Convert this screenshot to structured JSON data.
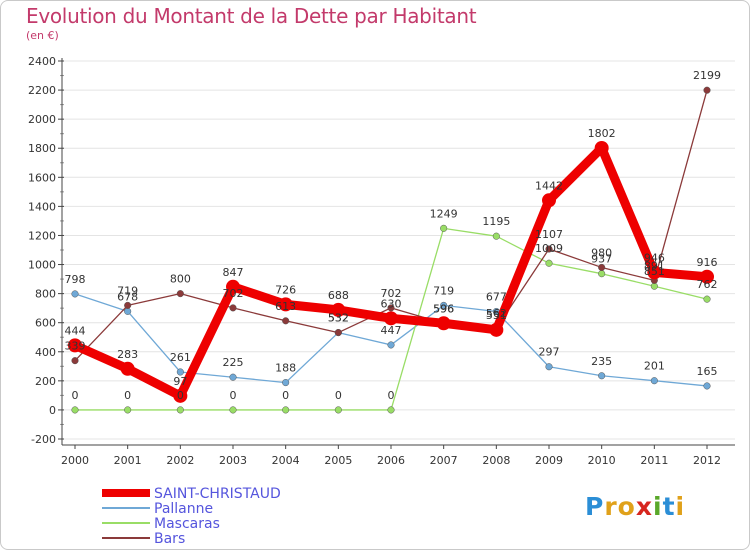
{
  "title": "Evolution du Montant de la Dette par Habitant",
  "subtitle": "(en €)",
  "logo": {
    "letters": [
      "P",
      "r",
      "o",
      "x",
      "i",
      "t",
      "i"
    ],
    "colors": [
      "#2b8ed6",
      "#e0a11a",
      "#e0a11a",
      "#d7261f",
      "#5aa82a",
      "#2b8ed6",
      "#e0a11a"
    ]
  },
  "chart_data": {
    "type": "line",
    "x": [
      2000,
      2001,
      2002,
      2003,
      2004,
      2005,
      2006,
      2007,
      2008,
      2009,
      2010,
      2011,
      2012
    ],
    "ylim": [
      -200,
      2400
    ],
    "yticks": [
      -200,
      0,
      200,
      400,
      600,
      800,
      1000,
      1200,
      1400,
      1600,
      1800,
      2000,
      2200,
      2400
    ],
    "grid": "horizontal",
    "legend_position": "bottom-left",
    "series": [
      {
        "name": "SAINT-CHRISTAUD",
        "color": "#ee0000",
        "legend_text_color": "#5555dd",
        "values": [
          444,
          283,
          97,
          847,
          726,
          688,
          630,
          596,
          551,
          1442,
          1802,
          946,
          916
        ],
        "labels": [
          "444",
          "283",
          "97",
          "847",
          "726",
          "688",
          "630",
          "596",
          "551",
          "1442",
          "1802",
          "946",
          "916"
        ]
      },
      {
        "name": "Pallanne",
        "color": "#6fa8d6",
        "legend_text_color": "#5555dd",
        "values": [
          798,
          678,
          261,
          225,
          188,
          532,
          447,
          719,
          677,
          297,
          235,
          201,
          165
        ],
        "labels": [
          "798",
          "678",
          "261",
          "225",
          "188",
          "532",
          "447",
          "719",
          "677",
          "297",
          "235",
          "201",
          "165"
        ]
      },
      {
        "name": "Mascaras",
        "color": "#99dd66",
        "legend_text_color": "#5555dd",
        "values": [
          0,
          0,
          0,
          0,
          0,
          0,
          0,
          1249,
          1195,
          1009,
          937,
          851,
          762
        ],
        "labels": [
          "0",
          "0",
          "0",
          "0",
          "0",
          "0",
          "0",
          "1249",
          "1195",
          "1009",
          "937",
          "851",
          "762"
        ]
      },
      {
        "name": "Bars",
        "color": "#8b3a3a",
        "legend_text_color": "#5555dd",
        "values": [
          339,
          719,
          800,
          702,
          613,
          532,
          702,
          596,
          562,
          1107,
          980,
          891,
          2199
        ],
        "labels": [
          "339",
          "719",
          "800",
          "702",
          "613",
          "532",
          "702",
          "596",
          "562",
          "1107",
          "980",
          "891",
          "2199"
        ]
      }
    ]
  }
}
